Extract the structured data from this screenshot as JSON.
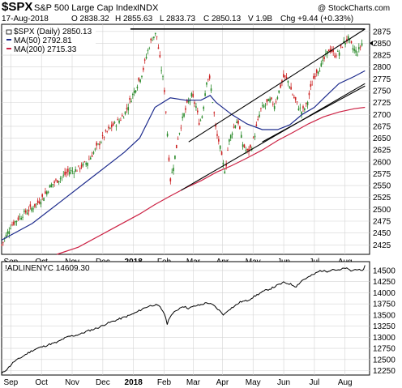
{
  "header": {
    "symbol": "$SPX",
    "name": "S&P 500 Large Cap Index",
    "exchange": "INDX",
    "watermark": "@ StockCharts.com",
    "date": "17-Aug-2018",
    "open": "O 2838.32",
    "high": "H 2855.63",
    "low": "L 2833.73",
    "close": "C 2850.13",
    "volume": "V 1.9B",
    "change": "Chg +9.44 (+0.33%)"
  },
  "colors": {
    "up": "#2a8a2a",
    "down": "#cc2222",
    "ma50": "#1c2a8c",
    "ma200": "#cc2244",
    "grid": "#d4d4d4",
    "line": "#000000"
  },
  "legend": [
    {
      "label": "$SPX (Daily) 2850.13",
      "color": "#000000",
      "style": "candle"
    },
    {
      "label": "MA(50) 2792.81",
      "color": "#1c2a8c",
      "style": "line"
    },
    {
      "label": "MA(200) 2715.33",
      "color": "#cc2244",
      "style": "line"
    }
  ],
  "lower_label": "!ADLINENYC 14609.30",
  "chart_data": [
    {
      "type": "candlestick",
      "title": "$SPX S&P 500 Large Cap Index INDX",
      "x_labels": [
        {
          "label": "Sep",
          "x": 0.3
        },
        {
          "label": "Oct",
          "x": 1.3
        },
        {
          "label": "Nov",
          "x": 2.3
        },
        {
          "label": "Dec",
          "x": 3.3
        },
        {
          "label": "2018",
          "x": 4.3,
          "bold": true
        },
        {
          "label": "Feb",
          "x": 5.3
        },
        {
          "label": "Mar",
          "x": 6.25
        },
        {
          "label": "Apr",
          "x": 7.2
        },
        {
          "label": "May",
          "x": 8.2
        },
        {
          "label": "Jun",
          "x": 9.2
        },
        {
          "label": "Jul",
          "x": 10.2
        },
        {
          "label": "Aug",
          "x": 11.2
        }
      ],
      "x_range": [
        0,
        12.0
      ],
      "ylim": [
        2405,
        2890
      ],
      "y_ticks": [
        2425,
        2450,
        2475,
        2500,
        2525,
        2550,
        2575,
        2600,
        2625,
        2650,
        2675,
        2700,
        2725,
        2750,
        2775,
        2800,
        2825,
        2850,
        2875
      ],
      "close_path": [
        [
          0.0,
          2425
        ],
        [
          0.15,
          2445
        ],
        [
          0.3,
          2465
        ],
        [
          0.5,
          2478
        ],
        [
          0.7,
          2490
        ],
        [
          1.0,
          2503
        ],
        [
          1.2,
          2515
        ],
        [
          1.4,
          2530
        ],
        [
          1.6,
          2550
        ],
        [
          1.8,
          2560
        ],
        [
          2.0,
          2570
        ],
        [
          2.2,
          2580
        ],
        [
          2.4,
          2582
        ],
        [
          2.6,
          2590
        ],
        [
          2.8,
          2600
        ],
        [
          3.0,
          2620
        ],
        [
          3.2,
          2640
        ],
        [
          3.4,
          2660
        ],
        [
          3.6,
          2675
        ],
        [
          3.8,
          2685
        ],
        [
          4.0,
          2700
        ],
        [
          4.2,
          2730
        ],
        [
          4.4,
          2760
        ],
        [
          4.6,
          2790
        ],
        [
          4.75,
          2830
        ],
        [
          4.9,
          2860
        ],
        [
          5.05,
          2872
        ],
        [
          5.15,
          2820
        ],
        [
          5.3,
          2760
        ],
        [
          5.42,
          2650
        ],
        [
          5.5,
          2560
        ],
        [
          5.6,
          2590
        ],
        [
          5.75,
          2650
        ],
        [
          5.9,
          2690
        ],
        [
          6.05,
          2720
        ],
        [
          6.2,
          2740
        ],
        [
          6.35,
          2715
        ],
        [
          6.45,
          2680
        ],
        [
          6.55,
          2700
        ],
        [
          6.7,
          2780
        ],
        [
          6.8,
          2770
        ],
        [
          6.9,
          2720
        ],
        [
          7.0,
          2660
        ],
        [
          7.1,
          2640
        ],
        [
          7.2,
          2600
        ],
        [
          7.3,
          2580
        ],
        [
          7.4,
          2640
        ],
        [
          7.55,
          2670
        ],
        [
          7.7,
          2690
        ],
        [
          7.85,
          2640
        ],
        [
          8.0,
          2620
        ],
        [
          8.15,
          2630
        ],
        [
          8.3,
          2670
        ],
        [
          8.45,
          2710
        ],
        [
          8.6,
          2720
        ],
        [
          8.75,
          2730
        ],
        [
          8.9,
          2720
        ],
        [
          9.05,
          2750
        ],
        [
          9.2,
          2780
        ],
        [
          9.35,
          2770
        ],
        [
          9.5,
          2740
        ],
        [
          9.65,
          2720
        ],
        [
          9.8,
          2705
        ],
        [
          9.95,
          2720
        ],
        [
          10.1,
          2760
        ],
        [
          10.25,
          2790
        ],
        [
          10.4,
          2800
        ],
        [
          10.55,
          2820
        ],
        [
          10.7,
          2840
        ],
        [
          10.85,
          2825
        ],
        [
          11.0,
          2830
        ],
        [
          11.15,
          2850
        ],
        [
          11.3,
          2860
        ],
        [
          11.45,
          2840
        ],
        [
          11.6,
          2830
        ],
        [
          11.75,
          2850
        ]
      ],
      "ma50": [
        [
          0.0,
          2435
        ],
        [
          1.0,
          2470
        ],
        [
          2.0,
          2520
        ],
        [
          3.0,
          2570
        ],
        [
          4.0,
          2620
        ],
        [
          4.5,
          2650
        ],
        [
          5.0,
          2715
        ],
        [
          5.5,
          2735
        ],
        [
          6.0,
          2730
        ],
        [
          6.5,
          2730
        ],
        [
          6.8,
          2740
        ],
        [
          7.0,
          2725
        ],
        [
          7.5,
          2700
        ],
        [
          8.0,
          2680
        ],
        [
          8.5,
          2668
        ],
        [
          9.0,
          2668
        ],
        [
          9.4,
          2678
        ],
        [
          9.8,
          2700
        ],
        [
          10.2,
          2715
        ],
        [
          10.6,
          2740
        ],
        [
          11.0,
          2765
        ],
        [
          11.5,
          2780
        ],
        [
          11.85,
          2792
        ]
      ],
      "ma200": [
        [
          1.8,
          2405
        ],
        [
          2.5,
          2420
        ],
        [
          3.5,
          2455
        ],
        [
          4.5,
          2490
        ],
        [
          5.0,
          2510
        ],
        [
          5.5,
          2528
        ],
        [
          6.0,
          2545
        ],
        [
          6.5,
          2560
        ],
        [
          7.0,
          2578
        ],
        [
          7.5,
          2592
        ],
        [
          8.0,
          2608
        ],
        [
          8.5,
          2625
        ],
        [
          9.0,
          2645
        ],
        [
          9.5,
          2662
        ],
        [
          10.0,
          2680
        ],
        [
          10.5,
          2695
        ],
        [
          11.0,
          2705
        ],
        [
          11.5,
          2712
        ],
        [
          11.85,
          2715
        ]
      ],
      "trendlines": [
        {
          "from": [
            4.2,
            2880
          ],
          "to": [
            11.85,
            2880
          ]
        },
        {
          "from": [
            6.1,
            2642
          ],
          "to": [
            11.85,
            2880
          ]
        },
        {
          "from": [
            5.85,
            2540
          ],
          "to": [
            11.85,
            2765
          ]
        },
        {
          "from": [
            8.5,
            2642
          ],
          "to": [
            11.85,
            2760
          ]
        }
      ]
    },
    {
      "type": "line",
      "title": "!ADLINENYC 14609.30",
      "x_labels": [
        {
          "label": "Sep",
          "x": 0.3
        },
        {
          "label": "Oct",
          "x": 1.3
        },
        {
          "label": "Nov",
          "x": 2.3
        },
        {
          "label": "Dec",
          "x": 3.3
        },
        {
          "label": "2018",
          "x": 4.3,
          "bold": true
        },
        {
          "label": "Feb",
          "x": 5.3
        },
        {
          "label": "Mar",
          "x": 6.25
        },
        {
          "label": "Apr",
          "x": 7.2
        },
        {
          "label": "May",
          "x": 8.2
        },
        {
          "label": "Jun",
          "x": 9.2
        },
        {
          "label": "Jul",
          "x": 10.2
        },
        {
          "label": "Aug",
          "x": 11.2
        }
      ],
      "x_range": [
        0,
        12.0
      ],
      "ylim": [
        12150,
        14700
      ],
      "y_ticks": [
        12250,
        12500,
        12750,
        13000,
        13250,
        13500,
        13750,
        14000,
        14250,
        14500
      ],
      "values": [
        [
          0.0,
          12180
        ],
        [
          0.2,
          12300
        ],
        [
          0.4,
          12450
        ],
        [
          0.6,
          12530
        ],
        [
          0.8,
          12620
        ],
        [
          1.0,
          12700
        ],
        [
          1.2,
          12760
        ],
        [
          1.4,
          12800
        ],
        [
          1.6,
          12850
        ],
        [
          1.8,
          12880
        ],
        [
          2.0,
          12960
        ],
        [
          2.2,
          13020
        ],
        [
          2.4,
          13040
        ],
        [
          2.6,
          13080
        ],
        [
          2.8,
          13140
        ],
        [
          3.0,
          13180
        ],
        [
          3.2,
          13230
        ],
        [
          3.4,
          13300
        ],
        [
          3.6,
          13350
        ],
        [
          3.8,
          13400
        ],
        [
          4.0,
          13450
        ],
        [
          4.2,
          13500
        ],
        [
          4.4,
          13560
        ],
        [
          4.6,
          13640
        ],
        [
          4.8,
          13700
        ],
        [
          5.0,
          13730
        ],
        [
          5.15,
          13690
        ],
        [
          5.3,
          13550
        ],
        [
          5.4,
          13300
        ],
        [
          5.5,
          13480
        ],
        [
          5.7,
          13600
        ],
        [
          5.9,
          13700
        ],
        [
          6.1,
          13650
        ],
        [
          6.3,
          13700
        ],
        [
          6.5,
          13730
        ],
        [
          6.7,
          13780
        ],
        [
          6.9,
          13720
        ],
        [
          7.1,
          13600
        ],
        [
          7.25,
          13500
        ],
        [
          7.4,
          13620
        ],
        [
          7.6,
          13700
        ],
        [
          7.8,
          13800
        ],
        [
          8.0,
          13820
        ],
        [
          8.2,
          13900
        ],
        [
          8.4,
          13980
        ],
        [
          8.6,
          14050
        ],
        [
          8.8,
          14100
        ],
        [
          9.0,
          14170
        ],
        [
          9.2,
          14230
        ],
        [
          9.4,
          14200
        ],
        [
          9.6,
          14140
        ],
        [
          9.8,
          14280
        ],
        [
          10.0,
          14350
        ],
        [
          10.2,
          14420
        ],
        [
          10.4,
          14500
        ],
        [
          10.6,
          14480
        ],
        [
          10.8,
          14530
        ],
        [
          11.0,
          14500
        ],
        [
          11.2,
          14560
        ],
        [
          11.4,
          14490
        ],
        [
          11.6,
          14540
        ],
        [
          11.75,
          14470
        ],
        [
          11.85,
          14609
        ]
      ]
    }
  ]
}
